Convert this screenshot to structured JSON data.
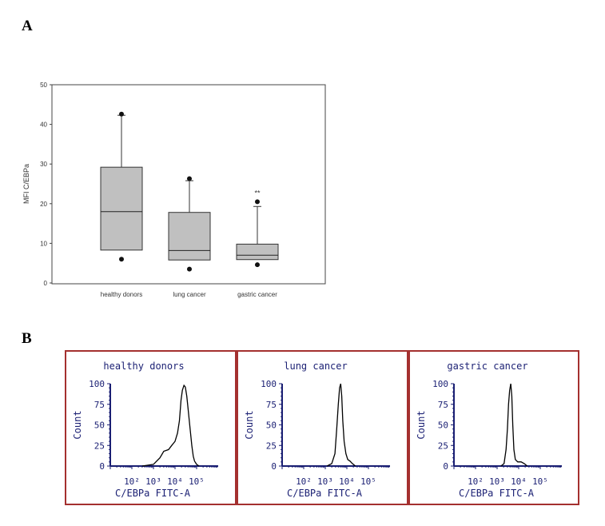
{
  "panels": {
    "a_label": "A",
    "b_label": "B"
  },
  "chart_data": [
    {
      "type": "box",
      "ylabel": "MFI C/EBPa",
      "ylim": [
        0,
        50
      ],
      "yticks": [
        0,
        10,
        20,
        30,
        40,
        50
      ],
      "categories": [
        "healthy donors",
        "lung cancer",
        "gastric cancer"
      ],
      "boxes": [
        {
          "category": "healthy donors",
          "whisker_low": 8.3,
          "q1": 8.3,
          "median": 18,
          "q3": 29.2,
          "whisker_high": 42.3,
          "outliers": [
            6,
            42.6
          ]
        },
        {
          "category": "lung cancer",
          "whisker_low": 5.8,
          "q1": 5.8,
          "median": 8.2,
          "q3": 17.8,
          "whisker_high": 25.8,
          "outliers": [
            3.5,
            26.3
          ]
        },
        {
          "category": "gastric cancer",
          "whisker_low": 5.9,
          "q1": 5.9,
          "median": 7,
          "q3": 9.8,
          "whisker_high": 19.3,
          "outliers": [
            4.6,
            20.5
          ]
        }
      ],
      "annotations": [
        {
          "category": "gastric cancer",
          "text": "**"
        }
      ],
      "grid": false
    },
    {
      "type": "line",
      "title": "healthy donors",
      "xlabel": "C/EBPa FITC-A",
      "ylabel": "Count",
      "xscale": "log",
      "xlim": [
        10,
        1000000
      ],
      "ylim": [
        0,
        100
      ],
      "yticks": [
        0,
        25,
        50,
        75,
        100
      ],
      "xticks": [
        "10²",
        "10³",
        "10⁴",
        "10⁵"
      ],
      "x": [
        300,
        1000,
        2000,
        3000,
        5000,
        7000,
        10000,
        13000,
        16000,
        19000,
        22000,
        26000,
        30000,
        35000,
        40000,
        50000,
        60000,
        70000,
        80000,
        100000,
        130000
      ],
      "y": [
        0,
        2,
        10,
        18,
        20,
        25,
        30,
        40,
        55,
        80,
        92,
        98,
        96,
        85,
        70,
        45,
        25,
        12,
        6,
        2,
        0
      ]
    },
    {
      "type": "line",
      "title": "lung cancer",
      "xlabel": "C/EBPa FITC-A",
      "ylabel": "Count",
      "xscale": "log",
      "xlim": [
        10,
        1000000
      ],
      "ylim": [
        0,
        100
      ],
      "yticks": [
        0,
        25,
        50,
        75,
        100
      ],
      "xticks": [
        "10²",
        "10³",
        "10⁴",
        "10⁵"
      ],
      "x": [
        1200,
        2000,
        2800,
        3400,
        4000,
        4600,
        5200,
        5800,
        6500,
        7500,
        9000,
        11000,
        14000,
        18000,
        25000
      ],
      "y": [
        0,
        3,
        15,
        45,
        75,
        95,
        100,
        85,
        55,
        30,
        15,
        8,
        6,
        3,
        0
      ]
    },
    {
      "type": "line",
      "title": "gastric cancer",
      "xlabel": "C/EBPa FITC-A",
      "ylabel": "Count",
      "xscale": "log",
      "xlim": [
        10,
        1000000
      ],
      "ylim": [
        0,
        100
      ],
      "yticks": [
        0,
        25,
        50,
        75,
        100
      ],
      "xticks": [
        "10²",
        "10³",
        "10⁴",
        "10⁵"
      ],
      "x": [
        1500,
        2100,
        2600,
        3000,
        3400,
        3800,
        4300,
        4800,
        5300,
        6000,
        7000,
        9000,
        13000,
        18000,
        25000
      ],
      "y": [
        0,
        3,
        20,
        45,
        75,
        92,
        100,
        85,
        50,
        20,
        8,
        5,
        5,
        3,
        0
      ]
    }
  ]
}
